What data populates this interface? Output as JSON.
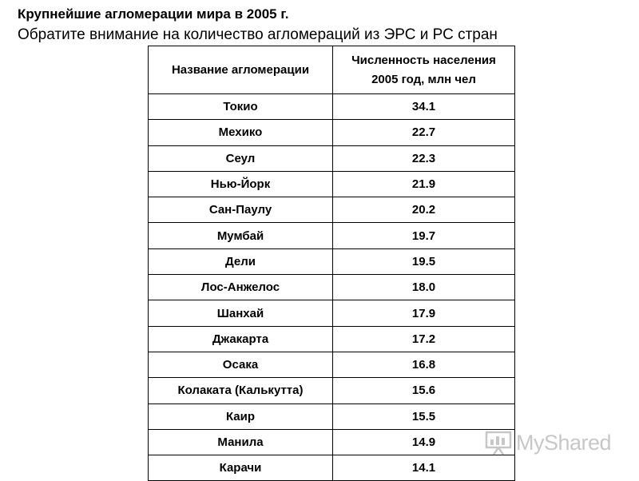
{
  "title": "Крупнейшие агломерации мира в 2005 г.",
  "subtitle": "Обратите внимание на количество агломераций из ЭРС и РС стран",
  "table": {
    "headers": [
      "Название агломерации",
      "Численность населения 2005 год, млн чел"
    ],
    "rows": [
      {
        "name": "Токио",
        "value": "34.1"
      },
      {
        "name": "Мехико",
        "value": "22.7"
      },
      {
        "name": "Сеул",
        "value": "22.3"
      },
      {
        "name": "Нью-Йорк",
        "value": "21.9"
      },
      {
        "name": "Сан-Паулу",
        "value": "20.2"
      },
      {
        "name": "Мумбай",
        "value": "19.7"
      },
      {
        "name": "Дели",
        "value": "19.5"
      },
      {
        "name": "Лос-Анжелос",
        "value": "18.0"
      },
      {
        "name": "Шанхай",
        "value": "17.9"
      },
      {
        "name": "Джакарта",
        "value": "17.2"
      },
      {
        "name": "Осака",
        "value": "16.8"
      },
      {
        "name": "Колаката (Калькутта)",
        "value": "15.6"
      },
      {
        "name": "Каир",
        "value": "15.5"
      },
      {
        "name": "Манила",
        "value": "14.9"
      },
      {
        "name": "Карачи",
        "value": "14.1"
      }
    ]
  },
  "watermark": {
    "brand": "MyShared",
    "icon": "presentation-board-icon",
    "color": "#9a9a9a"
  }
}
